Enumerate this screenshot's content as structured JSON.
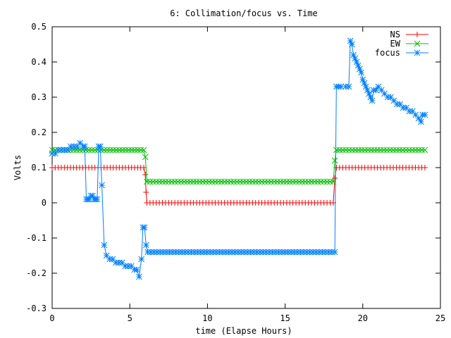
{
  "chart_data": {
    "type": "line",
    "title": "6: Collimation/focus vs. Time",
    "xlabel": "time (Elapse Hours)",
    "ylabel": "Volts",
    "xlim": [
      0,
      25
    ],
    "ylim": [
      -0.3,
      0.5
    ],
    "xticks": [
      0,
      5,
      10,
      15,
      20,
      25
    ],
    "xtick_labels": [
      "0",
      "5",
      "10",
      "15",
      "20",
      "25"
    ],
    "yticks": [
      -0.3,
      -0.2,
      -0.1,
      0,
      0.1,
      0.2,
      0.3,
      0.4,
      0.5
    ],
    "ytick_labels": [
      "-0.3",
      "-0.2",
      "-0.1",
      "0",
      "0.1",
      "0.2",
      "0.3",
      "0.4",
      "0.5"
    ],
    "grid": false,
    "legend_position": "top-right",
    "series": [
      {
        "name": "NS",
        "color": "#ff0000",
        "marker": "plus",
        "points": [
          [
            0.0,
            0.1
          ],
          [
            5.9,
            0.1
          ],
          [
            6.0,
            0.08
          ],
          [
            6.05,
            0.03
          ],
          [
            6.1,
            0.0
          ],
          [
            18.1,
            0.0
          ],
          [
            18.2,
            0.07
          ],
          [
            18.3,
            0.1
          ],
          [
            24.0,
            0.1
          ]
        ]
      },
      {
        "name": "EW",
        "color": "#00c000",
        "marker": "x",
        "points": [
          [
            0.0,
            0.15
          ],
          [
            5.9,
            0.15
          ],
          [
            6.0,
            0.13
          ],
          [
            6.1,
            0.06
          ],
          [
            18.1,
            0.06
          ],
          [
            18.2,
            0.12
          ],
          [
            18.3,
            0.15
          ],
          [
            24.0,
            0.15
          ]
        ]
      },
      {
        "name": "focus",
        "color": "#0080ff",
        "marker": "star",
        "points": [
          [
            0.0,
            0.14
          ],
          [
            0.2,
            0.14
          ],
          [
            0.4,
            0.15
          ],
          [
            0.6,
            0.15
          ],
          [
            0.8,
            0.15
          ],
          [
            1.0,
            0.15
          ],
          [
            1.2,
            0.16
          ],
          [
            1.4,
            0.16
          ],
          [
            1.6,
            0.16
          ],
          [
            1.8,
            0.17
          ],
          [
            2.0,
            0.16
          ],
          [
            2.1,
            0.16
          ],
          [
            2.2,
            0.01
          ],
          [
            2.3,
            0.01
          ],
          [
            2.4,
            0.01
          ],
          [
            2.5,
            0.02
          ],
          [
            2.6,
            0.02
          ],
          [
            2.7,
            0.01
          ],
          [
            2.8,
            0.01
          ],
          [
            2.9,
            0.01
          ],
          [
            3.0,
            0.16
          ],
          [
            3.1,
            0.16
          ],
          [
            3.2,
            0.05
          ],
          [
            3.35,
            -0.12
          ],
          [
            3.5,
            -0.15
          ],
          [
            3.7,
            -0.16
          ],
          [
            3.9,
            -0.16
          ],
          [
            4.1,
            -0.17
          ],
          [
            4.3,
            -0.17
          ],
          [
            4.5,
            -0.17
          ],
          [
            4.7,
            -0.18
          ],
          [
            4.9,
            -0.18
          ],
          [
            5.1,
            -0.18
          ],
          [
            5.3,
            -0.19
          ],
          [
            5.45,
            -0.19
          ],
          [
            5.6,
            -0.21
          ],
          [
            5.75,
            -0.16
          ],
          [
            5.85,
            -0.07
          ],
          [
            5.95,
            -0.07
          ],
          [
            6.05,
            -0.12
          ],
          [
            6.15,
            -0.14
          ],
          [
            18.2,
            -0.14
          ],
          [
            18.3,
            0.33
          ],
          [
            18.6,
            0.33
          ],
          [
            18.9,
            0.33
          ],
          [
            19.1,
            0.33
          ],
          [
            19.2,
            0.46
          ],
          [
            19.3,
            0.45
          ],
          [
            19.4,
            0.42
          ],
          [
            19.5,
            0.41
          ],
          [
            19.6,
            0.4
          ],
          [
            19.7,
            0.39
          ],
          [
            19.8,
            0.38
          ],
          [
            19.9,
            0.37
          ],
          [
            20.0,
            0.35
          ],
          [
            20.1,
            0.34
          ],
          [
            20.2,
            0.33
          ],
          [
            20.3,
            0.32
          ],
          [
            20.4,
            0.31
          ],
          [
            20.5,
            0.3
          ],
          [
            20.6,
            0.29
          ],
          [
            20.7,
            0.32
          ],
          [
            20.85,
            0.32
          ],
          [
            21.0,
            0.33
          ],
          [
            21.2,
            0.32
          ],
          [
            21.4,
            0.31
          ],
          [
            21.6,
            0.3
          ],
          [
            21.8,
            0.3
          ],
          [
            22.0,
            0.29
          ],
          [
            22.2,
            0.28
          ],
          [
            22.4,
            0.28
          ],
          [
            22.6,
            0.27
          ],
          [
            22.8,
            0.27
          ],
          [
            23.0,
            0.26
          ],
          [
            23.2,
            0.26
          ],
          [
            23.4,
            0.25
          ],
          [
            23.6,
            0.24
          ],
          [
            23.75,
            0.23
          ],
          [
            23.85,
            0.25
          ],
          [
            24.0,
            0.25
          ]
        ]
      }
    ]
  }
}
